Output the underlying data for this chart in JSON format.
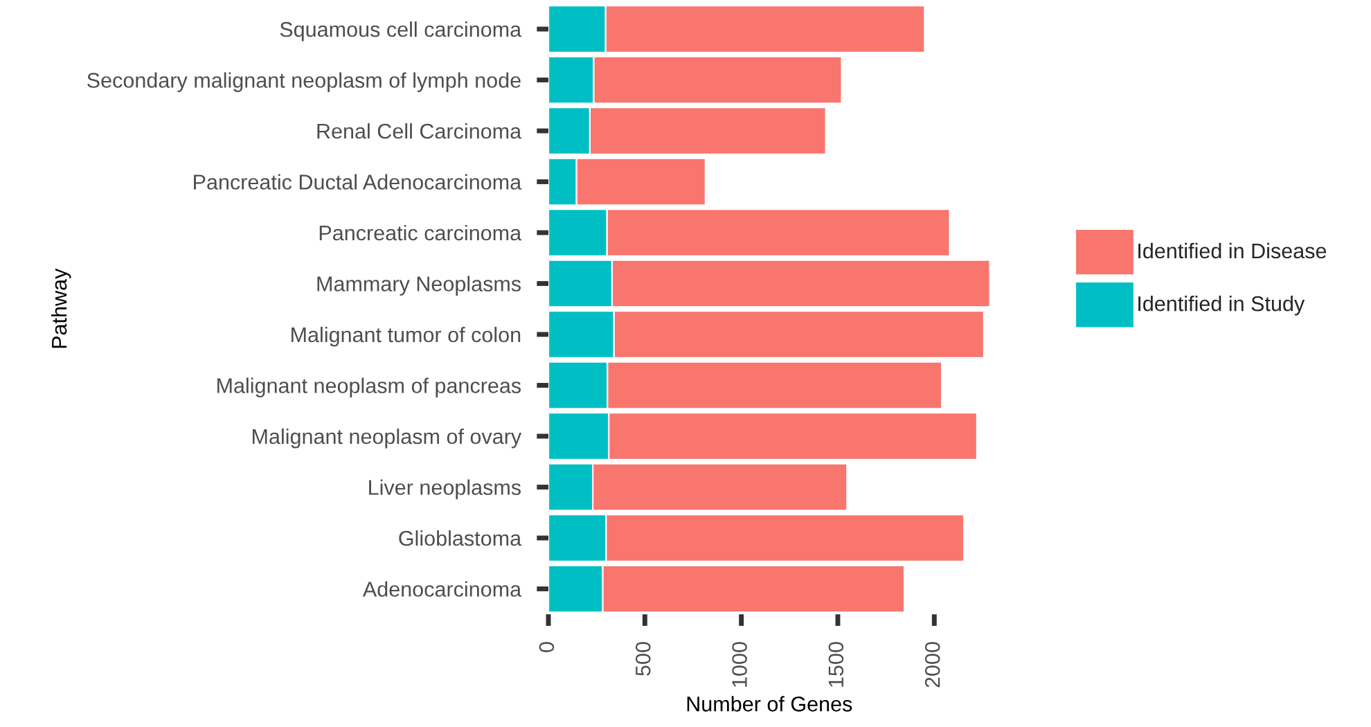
{
  "chart_data": {
    "type": "bar",
    "orientation": "horizontal",
    "stacked": true,
    "xlabel": "Number of Genes",
    "ylabel": "Pathway",
    "categories": [
      "Squamous cell carcinoma",
      "Secondary malignant neoplasm of lymph node",
      "Renal Cell Carcinoma",
      "Pancreatic Ductal Adenocarcinoma",
      "Pancreatic carcinoma",
      "Mammary Neoplasms",
      "Malignant tumor of colon",
      "Malignant neoplasm of pancreas",
      "Malignant neoplasm of ovary",
      "Liver neoplasms",
      "Glioblastoma",
      "Adenocarcinoma"
    ],
    "series": [
      {
        "name": "Identified in Study",
        "color": "#00bfc4",
        "values": [
          297,
          235,
          215,
          146,
          304,
          330,
          340,
          306,
          313,
          230,
          299,
          282
        ]
      },
      {
        "name": "Identified in Disease",
        "color": "#f8766d",
        "values": [
          1653,
          1285,
          1223,
          668,
          1776,
          1958,
          1917,
          1733,
          1908,
          1318,
          1855,
          1563
        ]
      }
    ],
    "xlim": [
      0,
      2288
    ],
    "xticks": [
      0,
      500,
      1000,
      1500,
      2000
    ],
    "grid": false,
    "legend": "right"
  }
}
